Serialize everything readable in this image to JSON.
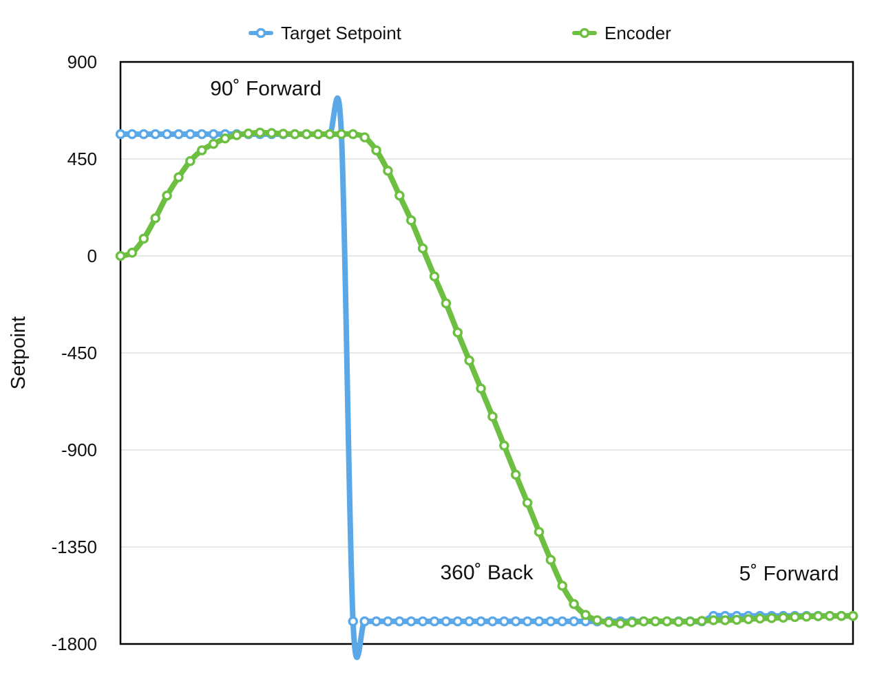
{
  "chart_data": {
    "type": "line",
    "title": "",
    "xlabel": "",
    "ylabel": "Setpoint",
    "ylim": [
      -1800,
      900
    ],
    "yticks": [
      "900",
      "450",
      "0",
      "-450",
      "-900",
      "-1350",
      "-1800"
    ],
    "ytick_values": [
      900,
      450,
      0,
      -450,
      -900,
      -1350,
      -1800
    ],
    "x_range": [
      0,
      63
    ],
    "grid": true,
    "legend_position": "top",
    "annotations": [
      {
        "text": "90˚ Forward",
        "x": 12.5,
        "y": 745
      },
      {
        "text": "360˚ Back",
        "x": 31.5,
        "y": -1500
      },
      {
        "text": "5˚ Forward",
        "x": 57.5,
        "y": -1505
      }
    ],
    "series": [
      {
        "name": "Target Setpoint",
        "color": "#5BA8E8",
        "values": [
          565,
          565,
          565,
          565,
          565,
          565,
          565,
          565,
          565,
          565,
          565,
          565,
          565,
          565,
          565,
          565,
          565,
          565,
          565,
          565,
          -1695,
          -1695,
          -1695,
          -1695,
          -1695,
          -1695,
          -1695,
          -1695,
          -1695,
          -1695,
          -1695,
          -1695,
          -1695,
          -1695,
          -1695,
          -1695,
          -1695,
          -1695,
          -1695,
          -1695,
          -1695,
          -1695,
          -1695,
          -1695,
          -1695,
          -1695,
          -1695,
          -1695,
          -1695,
          -1695,
          -1695,
          -1670,
          -1670,
          -1670,
          -1670,
          -1670,
          -1670,
          -1670,
          -1670,
          -1670,
          -1670,
          -1670,
          -1670,
          -1670
        ]
      },
      {
        "name": "Encoder",
        "color": "#6DBF42",
        "values": [
          0,
          15,
          80,
          175,
          280,
          365,
          440,
          490,
          520,
          545,
          560,
          568,
          572,
          570,
          567,
          565,
          565,
          565,
          565,
          565,
          565,
          550,
          490,
          395,
          280,
          165,
          35,
          -95,
          -220,
          -355,
          -485,
          -615,
          -745,
          -880,
          -1015,
          -1145,
          -1280,
          -1410,
          -1530,
          -1615,
          -1665,
          -1690,
          -1700,
          -1705,
          -1700,
          -1695,
          -1695,
          -1695,
          -1697,
          -1696,
          -1693,
          -1690,
          -1690,
          -1688,
          -1685,
          -1682,
          -1680,
          -1678,
          -1675,
          -1673,
          -1671,
          -1670,
          -1670,
          -1670
        ]
      }
    ]
  }
}
